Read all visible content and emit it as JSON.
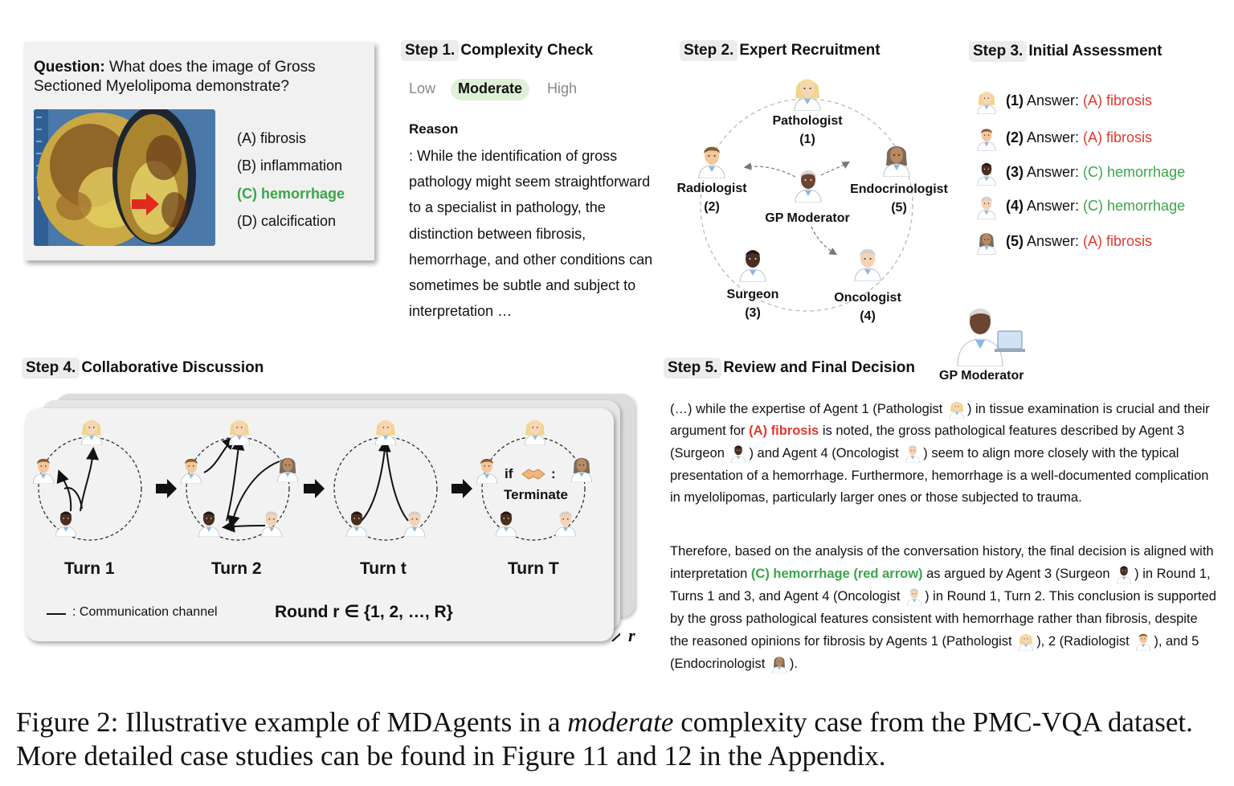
{
  "question": {
    "prefix": "Question:",
    "text": " What does the image of Gross Sectioned Myelolipoma demonstrate?",
    "options": [
      "(A) fibrosis",
      "(B) inflammation",
      "(C) hemorrhage",
      "(D) calcification"
    ]
  },
  "step1": {
    "chip": "Step 1.",
    "title": "Complexity Check",
    "levels": [
      "Low",
      "Moderate",
      "High"
    ],
    "reason_title": "Reason",
    "reason_body": ": While the identification of gross pathology might seem straightforward to a specialist in pathology, the distinction between fibrosis, hemorrhage, and other conditions can sometimes be subtle and subject to interpretation …"
  },
  "step2": {
    "chip": "Step 2.",
    "title": "Expert Recruitment",
    "experts": [
      {
        "name": "Pathologist",
        "num": "(1)"
      },
      {
        "name": "Radiologist",
        "num": "(2)"
      },
      {
        "name": "Surgeon",
        "num": "(3)"
      },
      {
        "name": "Oncologist",
        "num": "(4)"
      },
      {
        "name": "Endocrinologist",
        "num": "(5)"
      }
    ],
    "moderator": "GP Moderator"
  },
  "step3": {
    "chip": "Step 3.",
    "title": "Initial Assessment",
    "answers": [
      {
        "num": "(1)",
        "label": "Answer:",
        "value": "(A) fibrosis",
        "color": "#e03a2f"
      },
      {
        "num": "(2)",
        "label": "Answer:",
        "value": "(A) fibrosis",
        "color": "#e03a2f"
      },
      {
        "num": "(3)",
        "label": "Answer:",
        "value": "(C) hemorrhage",
        "color": "#3aa64a"
      },
      {
        "num": "(4)",
        "label": "Answer:",
        "value": "(C) hemorrhage",
        "color": "#3aa64a"
      },
      {
        "num": "(5)",
        "label": "Answer:",
        "value": "(A) fibrosis",
        "color": "#e03a2f"
      }
    ]
  },
  "step4": {
    "chip": "Step 4.",
    "title": "Collaborative Discussion",
    "turns": [
      "Turn 1",
      "Turn 2",
      "Turn t",
      "Turn T"
    ],
    "if_text": "if",
    "colon": ":",
    "terminate": "Terminate",
    "legend": ": Communication channel",
    "round_text": "Round r ∈ {1, 2, …, R}",
    "stack_axis": "r"
  },
  "step5": {
    "chip": "Step 5.",
    "title": "Review and Final Decision",
    "moderator": "GP Moderator",
    "p1": {
      "a": "(…) while the expertise of Agent 1 (Pathologist ",
      "b": ") in tissue examination is crucial and their argument for ",
      "c": "(A) fibrosis",
      "d": " is noted, the gross pathological features described by Agent 3 (Surgeon ",
      "e": ") and Agent 4 (Oncologist ",
      "f": ") seem to align more closely with the typical presentation of a hemorrhage. Furthermore, hemorrhage is a well-documented complication in myelolipomas, particularly larger ones or those subjected to trauma."
    },
    "p2": {
      "a": "Therefore, based on the analysis of the conversation history, the final decision is aligned with interpretation ",
      "b": "(C) hemorrhage (red arrow)",
      "c": " as argued by Agent 3 (Surgeon ",
      "d": ") in Round 1, Turns 1 and 3, and Agent 4 (Oncologist ",
      "e": ") in Round 1, Turn 2. This conclusion is supported by the gross pathological features consistent with hemorrhage rather than fibrosis, despite the reasoned opinions for fibrosis by Agents 1 (Pathologist ",
      "f": "), 2 (Radiologist ",
      "g": "), and 5 (Endocrinologist ",
      "h": ")."
    }
  },
  "caption": {
    "a": "Figure 2: Illustrative example of MDAgents in a ",
    "b": "moderate",
    "c": " complexity case from the PMC-VQA dataset. More detailed case studies can be found in Figure 11 and 12 in the Appendix."
  }
}
